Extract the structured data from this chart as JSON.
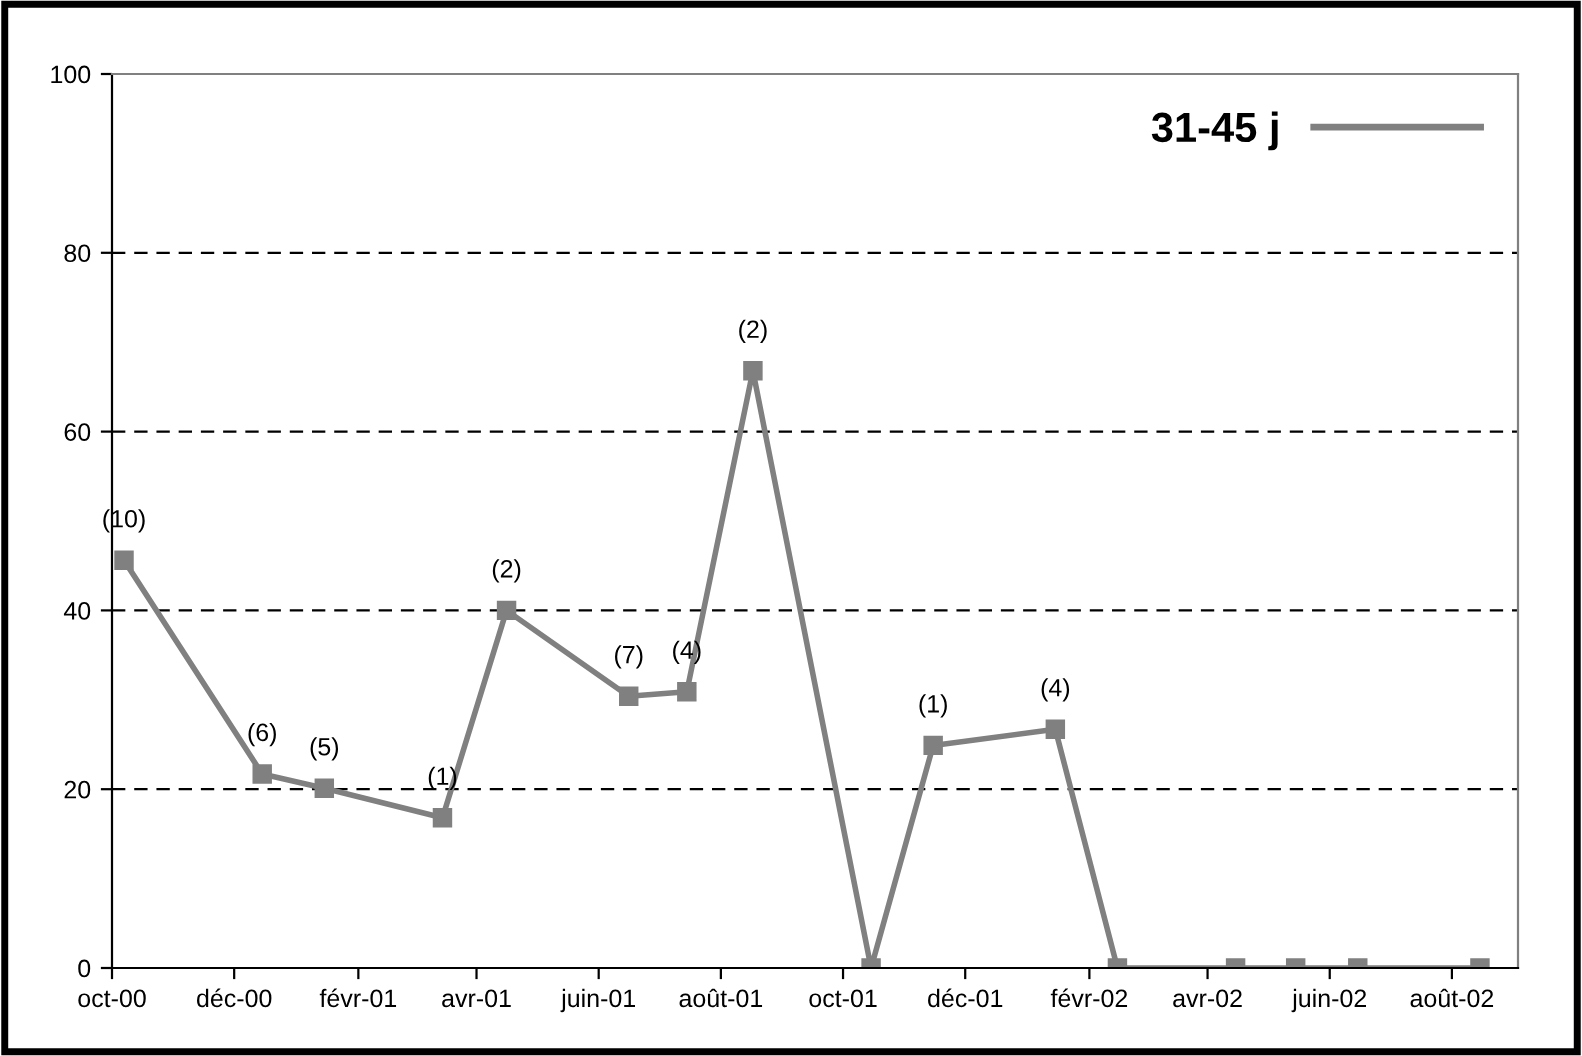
{
  "chart_data": {
    "type": "line",
    "x": [
      "2000-10-07",
      "2000-12-15",
      "2001-01-15",
      "2001-03-15",
      "2001-04-16",
      "2001-06-16",
      "2001-07-15",
      "2001-08-17",
      "2001-10-15",
      "2001-11-15",
      "2002-01-15",
      "2002-02-15",
      "2002-04-15",
      "2002-05-15",
      "2002-06-15",
      "2002-08-15"
    ],
    "series": [
      {
        "name": "31-45 j",
        "color": "#808080",
        "values": [
          45.6,
          21.7,
          20.1,
          16.8,
          40,
          30.4,
          30.9,
          66.8,
          0,
          24.9,
          26.7,
          0,
          0,
          0,
          0,
          0
        ]
      }
    ],
    "marker": "square",
    "line_style": "solid",
    "grid": "y",
    "legend": "top right",
    "ylim": [
      0,
      100
    ],
    "yticks": [
      0,
      20,
      40,
      60,
      80,
      100
    ],
    "xlim": [
      "2000-10-01",
      "2002-09-03"
    ],
    "xticks": [
      {
        "value": "2000-10-01",
        "label": "oct-00"
      },
      {
        "value": "2000-12-01",
        "label": "déc-00"
      },
      {
        "value": "2001-02-01",
        "label": "févr-01"
      },
      {
        "value": "2001-04-01",
        "label": "avr-01"
      },
      {
        "value": "2001-06-01",
        "label": "juin-01"
      },
      {
        "value": "2001-08-01",
        "label": "août-01"
      },
      {
        "value": "2001-10-01",
        "label": "oct-01"
      },
      {
        "value": "2001-12-01",
        "label": "déc-01"
      },
      {
        "value": "2002-02-01",
        "label": "févr-02"
      },
      {
        "value": "2002-04-01",
        "label": "avr-02"
      },
      {
        "value": "2002-06-01",
        "label": "juin-02"
      },
      {
        "value": "2002-08-01",
        "label": "août-02"
      }
    ],
    "annotations": [
      {
        "text": "(10)",
        "x": "2000-10-07",
        "y": 45.6
      },
      {
        "text": "(6)",
        "x": "2000-12-15",
        "y": 21.7
      },
      {
        "text": "(5)",
        "x": "2001-01-15",
        "y": 20.1
      },
      {
        "text": "(1)",
        "x": "2001-03-15",
        "y": 16.8
      },
      {
        "text": "(2)",
        "x": "2001-04-16",
        "y": 40
      },
      {
        "text": "(7)",
        "x": "2001-06-16",
        "y": 30.4
      },
      {
        "text": "(4)",
        "x": "2001-07-15",
        "y": 30.9
      },
      {
        "text": "(2)",
        "x": "2001-08-17",
        "y": 66.8
      },
      {
        "text": "(1)",
        "x": "2001-11-15",
        "y": 24.9
      },
      {
        "text": "(4)",
        "x": "2002-01-15",
        "y": 26.7
      }
    ]
  }
}
